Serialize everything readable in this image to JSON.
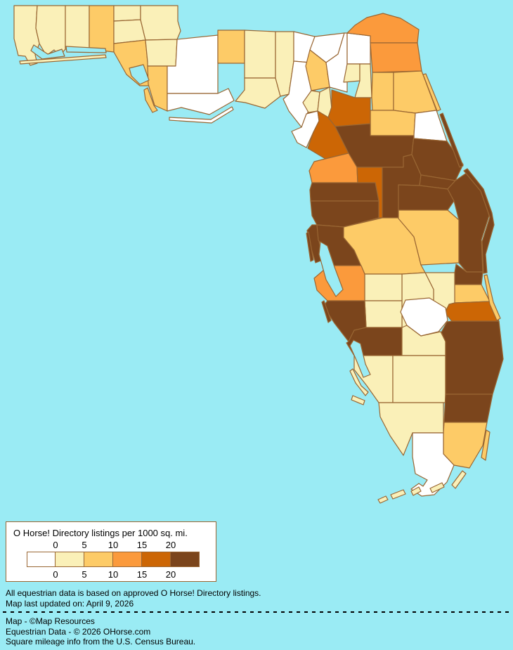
{
  "ocean_color": "#9AEBF4",
  "border_color": "#996633",
  "legend": {
    "title": "O Horse! Directory listings per 1000 sq. mi.",
    "ticks_top": [
      "0",
      "5",
      "10",
      "15",
      "20"
    ],
    "ticks_bottom": [
      "0",
      "5",
      "10",
      "15",
      "20"
    ]
  },
  "notes": {
    "disclaimer": "All equestrian data is based on approved O Horse! Directory listings.",
    "updated": "Map last updated on: April 9, 2026",
    "credit_map": "Map - ©Map Resources",
    "credit_data": "Equestrian Data - © 2026 OHorse.com",
    "credit_census": "Square mileage info from the U.S. Census Bureau."
  },
  "chart_data": {
    "type": "choropleth",
    "title": "O Horse! Directory listings per 1000 sq. mi.",
    "unit": "listings per 1000 sq. mi.",
    "legend_thresholds": [
      0,
      5,
      10,
      15,
      20
    ],
    "bucket_labels": [
      "0",
      "0-5",
      "5-10",
      "10-15",
      "15-20",
      "20+"
    ],
    "bucket_colors": [
      "#FFFFFF",
      "#FAF0B8",
      "#FDCB67",
      "#FB9A3C",
      "#CC6605",
      "#7B451C"
    ],
    "counties": {
      "escambia": 1,
      "santa-rosa": 1,
      "okaloosa": 1,
      "walton": 2,
      "holmes": 1,
      "washington": 1,
      "jackson": 1,
      "bay": 2,
      "calhoun": 1,
      "gulf": 2,
      "liberty": 0,
      "franklin": 0,
      "gadsden": 2,
      "leon": 1,
      "wakulla": 1,
      "jefferson": 1,
      "madison": 0,
      "taylor": 0,
      "hamilton": 0,
      "suwannee": 2,
      "columbia": 0,
      "lafayette": 1,
      "gilchrist": 1,
      "dixie": 0,
      "baker": 0,
      "nassau": 3,
      "duval": 3,
      "union": 1,
      "bradford": 1,
      "clay": 2,
      "st-johns": 2,
      "putnam": 2,
      "flagler": 0,
      "alachua": 4,
      "levy": 4,
      "marion": 5,
      "volusia": 5,
      "lake": 5,
      "seminole": 5,
      "orange": 5,
      "osceola": 2,
      "brevard": 5,
      "indian-river": 5,
      "st-lucie": 2,
      "martin": 4,
      "okeechobee": 1,
      "highlands": 1,
      "hardee": 1,
      "desoto": 1,
      "polk": 2,
      "hillsborough": 5,
      "pinellas": 5,
      "pasco": 5,
      "hernando": 5,
      "citrus": 3,
      "sumter": 4,
      "manatee": 3,
      "sarasota": 5,
      "charlotte": 5,
      "glades": 1,
      "hendry": 1,
      "palm-beach": 5,
      "broward": 5,
      "miami-dade": 2,
      "monroe": 0,
      "collier": 1,
      "lee": 1
    },
    "features": {
      "lake-okeechobee": 0,
      "florida-keys": 1,
      "key-largo": 1,
      "santa-rosa-island": 1,
      "st-joseph-spit": 2,
      "apalachicola-barrier": 0,
      "st-johns-barrier": 2,
      "volusia-barrier": 5,
      "brevard-barrier": 5,
      "hutchinson-barrier": 2,
      "biscayne-barrier": 2,
      "pinellas-barrier": 5,
      "sarasota-barrier": 5,
      "lee-islands": 1,
      "sanibel": 1
    }
  }
}
